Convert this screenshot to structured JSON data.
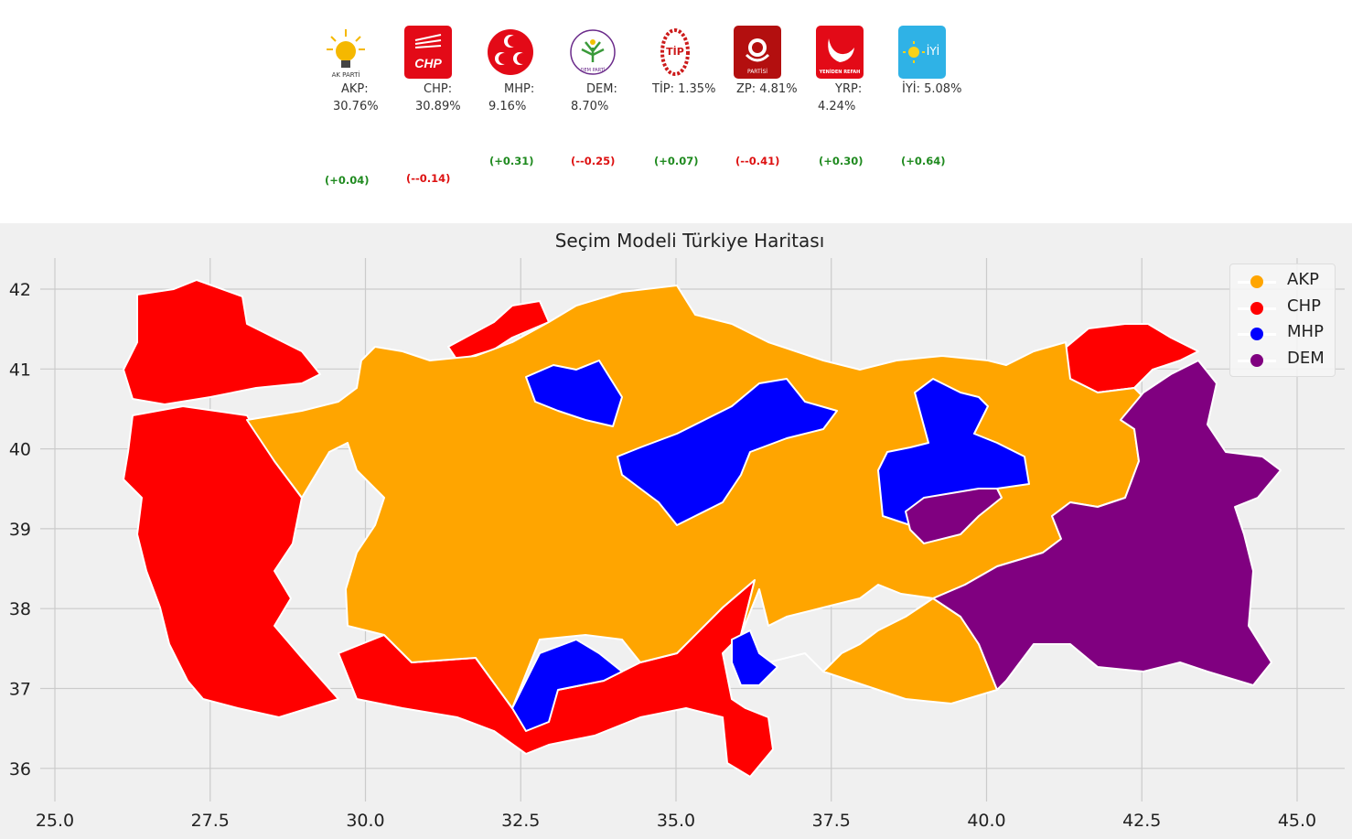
{
  "parties": [
    {
      "key": "akp",
      "name": "AKP:",
      "share": "30.76%",
      "delta": "(+0.04)",
      "delta_sign": "pos",
      "logo_text": "AK PARTİ",
      "logo_bg": "#ffffff"
    },
    {
      "key": "chp",
      "name": "CHP:",
      "share": "30.89%",
      "delta": "(--0.14)",
      "delta_sign": "neg",
      "logo_text": "CHP",
      "logo_bg": "#e30a17"
    },
    {
      "key": "mhp",
      "name": "MHP:",
      "share": "9.16%",
      "delta": "(+0.31)",
      "delta_sign": "pos",
      "logo_text": "",
      "logo_bg": "#e30a17"
    },
    {
      "key": "dem",
      "name": "DEM:",
      "share": "8.70%",
      "delta": "(--0.25)",
      "delta_sign": "neg",
      "logo_text": "DEM PARTİ",
      "logo_bg": "#ffffff"
    },
    {
      "key": "tip",
      "name": "TİP: 1.35%",
      "share": "",
      "delta": "(+0.07)",
      "delta_sign": "pos",
      "logo_text": "TİP",
      "logo_bg": "#ffffff"
    },
    {
      "key": "zp",
      "name": "ZP: 4.81%",
      "share": "",
      "delta": "(--0.41)",
      "delta_sign": "neg",
      "logo_text": "PARTİSİ",
      "logo_bg": "#b30f0f"
    },
    {
      "key": "yrp",
      "name": "YRP:",
      "share": "4.24%",
      "delta": "(+0.30)",
      "delta_sign": "pos",
      "logo_text": "YENİDEN REFAH",
      "logo_bg": "#e30a17"
    },
    {
      "key": "iyi",
      "name": "İYİ: 5.08%",
      "share": "",
      "delta": "(+0.64)",
      "delta_sign": "pos",
      "logo_text": "İYİ",
      "logo_bg": "#2fb2e6"
    }
  ],
  "map": {
    "title": "Seçim Modeli Türkiye Haritası",
    "x_ticks": [
      "25.0",
      "27.5",
      "30.0",
      "32.5",
      "35.0",
      "37.5",
      "40.0",
      "42.5",
      "45.0"
    ],
    "y_ticks": [
      "42",
      "41",
      "40",
      "39",
      "38",
      "37",
      "36"
    ],
    "lon_range": [
      25.0,
      45.0
    ],
    "lat_range": [
      36,
      42
    ],
    "legend": [
      {
        "label": "AKP",
        "color": "#ffa500"
      },
      {
        "label": "CHP",
        "color": "#ff0000"
      },
      {
        "label": "MHP",
        "color": "#0000ff"
      },
      {
        "label": "DEM",
        "color": "#800080"
      }
    ]
  }
}
